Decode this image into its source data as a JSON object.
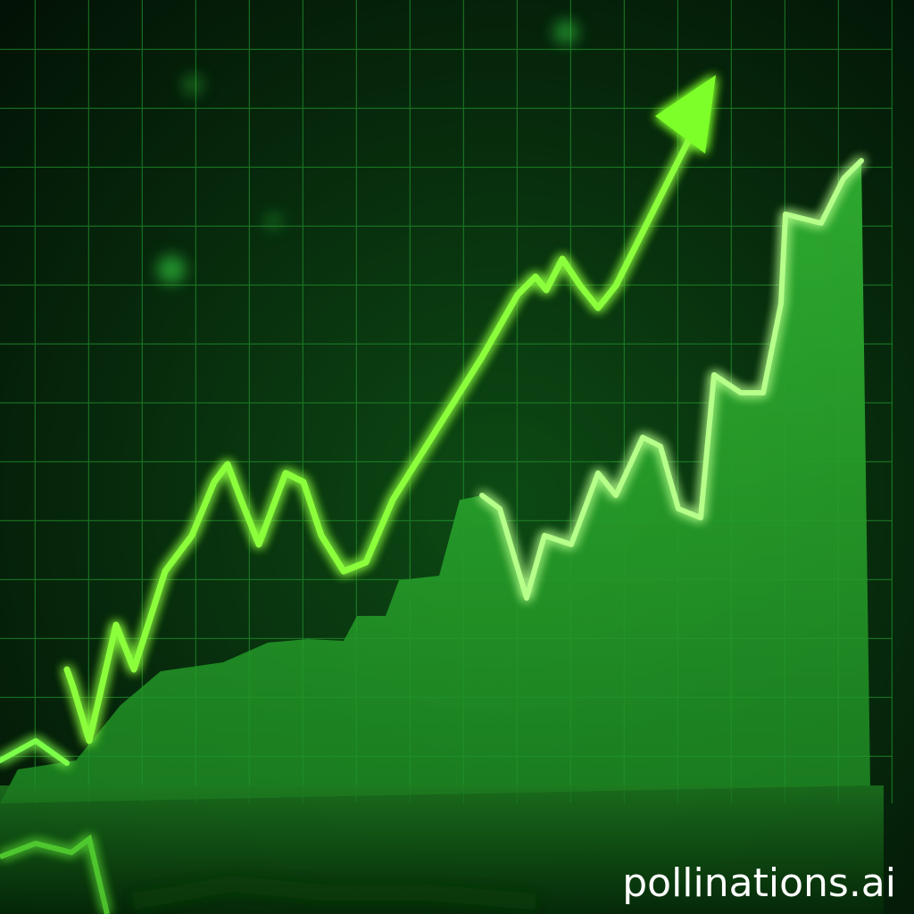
{
  "watermark": "pollinations.ai"
}
